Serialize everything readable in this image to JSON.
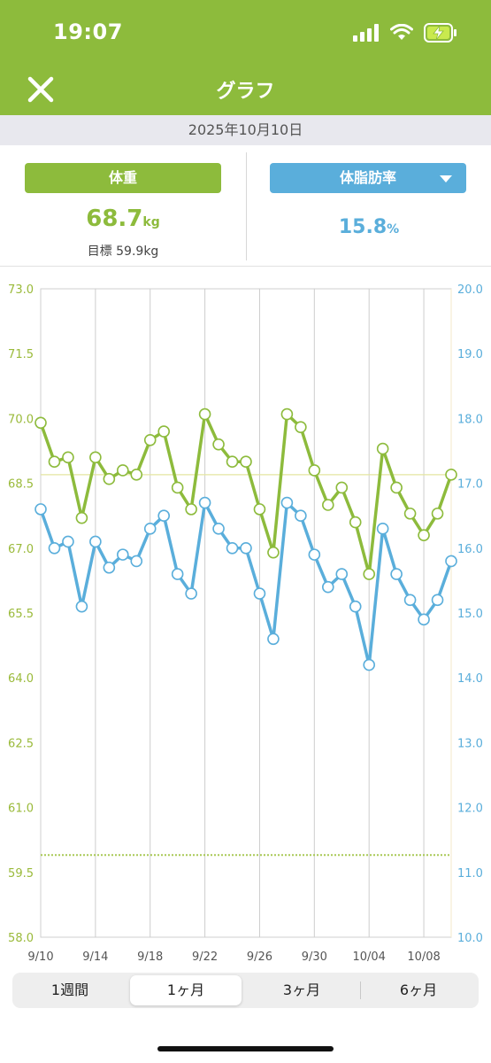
{
  "status_bar": {
    "time": "19:07"
  },
  "header": {
    "title": "グラフ"
  },
  "date": "2025年10月10日",
  "weight": {
    "label": "体重",
    "value": "68.7",
    "unit": "kg",
    "goal_label": "目標",
    "goal_value": "59.9kg"
  },
  "body_fat": {
    "label": "体脂肪率",
    "value": "15.8",
    "unit": "%"
  },
  "chart_data": {
    "type": "line",
    "x_dates": [
      "9/10",
      "9/11",
      "9/12",
      "9/13",
      "9/14",
      "9/15",
      "9/16",
      "9/17",
      "9/18",
      "9/19",
      "9/20",
      "9/21",
      "9/22",
      "9/23",
      "9/24",
      "9/25",
      "9/26",
      "9/27",
      "9/28",
      "9/29",
      "9/30",
      "10/01",
      "10/02",
      "10/03",
      "10/04",
      "10/05",
      "10/06",
      "10/07",
      "10/08",
      "10/09",
      "10/10"
    ],
    "x_tick_labels": [
      "9/10",
      "9/14",
      "9/18",
      "9/22",
      "9/26",
      "9/30",
      "10/04",
      "10/08"
    ],
    "left_axis": {
      "min": 58.0,
      "max": 73.0,
      "ticks": [
        "73.0",
        "71.5",
        "70.0",
        "68.5",
        "67.0",
        "65.5",
        "64.0",
        "62.5",
        "61.0",
        "59.5",
        "58.0"
      ],
      "color": "#9aba3a"
    },
    "right_axis": {
      "min": 10.0,
      "max": 20.0,
      "ticks": [
        "20.0",
        "19.0",
        "18.0",
        "17.0",
        "16.0",
        "15.0",
        "14.0",
        "13.0",
        "12.0",
        "11.0",
        "10.0"
      ],
      "color": "#5aaedb"
    },
    "series": [
      {
        "color": "#8dbb3c",
        "axis": "left",
        "values": [
          69.9,
          69.0,
          69.1,
          67.7,
          69.1,
          68.6,
          68.8,
          68.7,
          69.5,
          69.7,
          68.4,
          67.9,
          70.1,
          69.4,
          69.0,
          69.0,
          67.9,
          66.9,
          70.1,
          69.8,
          68.8,
          68.0,
          68.4,
          67.6,
          66.4,
          69.3,
          68.4,
          67.8,
          67.3,
          67.8,
          68.7
        ]
      },
      {
        "color": "#5aaedb",
        "axis": "right",
        "values": [
          16.6,
          16.0,
          16.1,
          15.1,
          16.1,
          15.7,
          15.9,
          15.8,
          16.3,
          16.5,
          15.6,
          15.3,
          16.7,
          16.3,
          16.0,
          16.0,
          15.3,
          14.6,
          16.7,
          16.5,
          15.9,
          15.4,
          15.6,
          15.1,
          14.2,
          16.3,
          15.6,
          15.2,
          14.9,
          15.2,
          15.8
        ]
      }
    ],
    "reference_lines": [
      {
        "axis": "left",
        "value": 68.7,
        "style": "solid",
        "color": "#e4e6a0"
      },
      {
        "axis": "left",
        "value": 59.9,
        "style": "dotted",
        "color": "#a9c957"
      }
    ],
    "grid": "vertical"
  },
  "periods": [
    {
      "label": "1週間",
      "active": false
    },
    {
      "label": "1ヶ月",
      "active": true
    },
    {
      "label": "3ヶ月",
      "active": false
    },
    {
      "label": "6ヶ月",
      "active": false
    }
  ]
}
